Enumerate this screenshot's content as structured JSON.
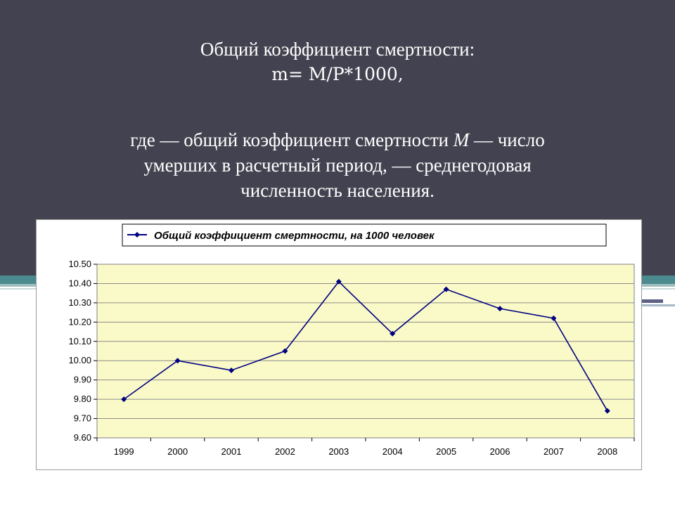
{
  "slide": {
    "title": "Общий коэффициент смертности:",
    "formula": "m= M/P*1000,",
    "desc_part1": "где  — общий коэффициент смертности ",
    "desc_m": "M",
    "desc_part2": " — число",
    "desc_line2": "умерших в расчетный период,    — среднегодовая",
    "desc_line3": "численность населения."
  },
  "colors": {
    "header_band": "#434250",
    "plot_background": "#fafac8",
    "series_line": "#000080"
  },
  "chart_data": {
    "type": "line",
    "title": "",
    "xlabel": "",
    "ylabel": "",
    "categories": [
      "1999",
      "2000",
      "2001",
      "2002",
      "2003",
      "2004",
      "2005",
      "2006",
      "2007",
      "2008"
    ],
    "series": [
      {
        "name": "Общий коэффициент смертности, на 1000 человек",
        "values": [
          9.8,
          10.0,
          9.95,
          10.05,
          10.41,
          10.14,
          10.37,
          10.27,
          10.22,
          9.74
        ]
      }
    ],
    "ylim": [
      9.6,
      10.5
    ],
    "yticks": [
      "9.60",
      "9.70",
      "9.80",
      "9.90",
      "10.00",
      "10.10",
      "10.20",
      "10.30",
      "10.40",
      "10.50"
    ],
    "grid": true,
    "legend_position": "top",
    "marker": "diamond"
  }
}
